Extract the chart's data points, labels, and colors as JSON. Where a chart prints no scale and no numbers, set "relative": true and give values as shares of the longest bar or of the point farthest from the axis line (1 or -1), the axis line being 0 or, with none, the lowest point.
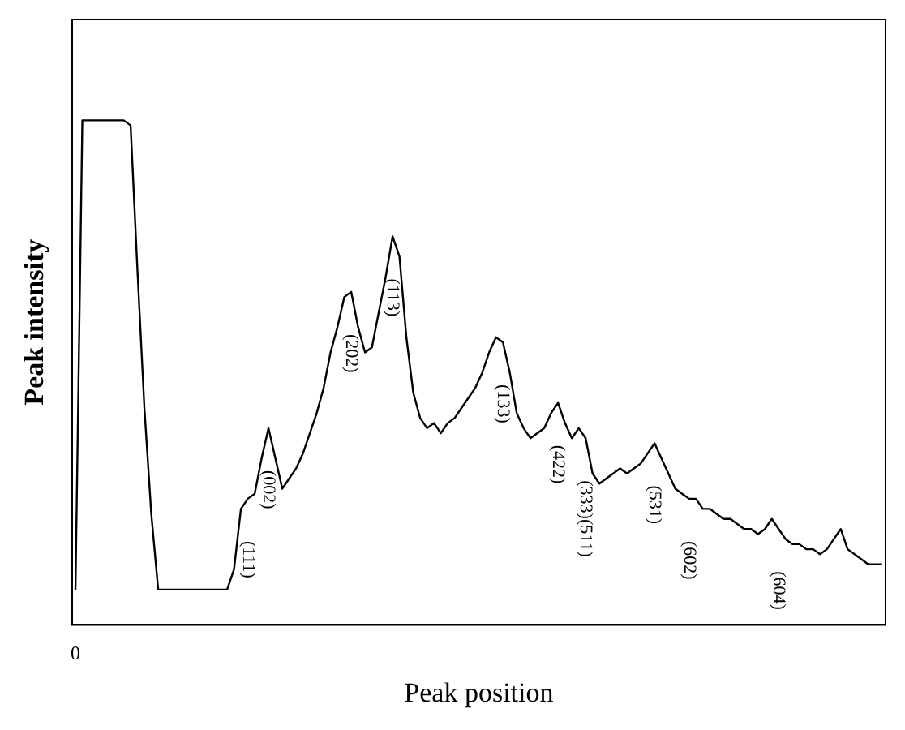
{
  "chart_data": {
    "type": "line",
    "relative": true,
    "xlabel": "Peak position",
    "ylabel": "Peak intensity",
    "legend": false,
    "grid": false,
    "categories": [
      "0",
      null,
      null,
      null,
      null,
      null,
      null,
      null,
      null,
      null,
      null,
      null,
      null,
      null,
      null,
      null,
      null,
      null,
      null,
      null,
      null,
      null,
      null,
      null,
      null,
      "(111)",
      null,
      null,
      "(002)",
      null,
      null,
      null,
      null,
      null,
      null,
      null,
      null,
      null,
      null,
      null,
      "(202)",
      null,
      null,
      null,
      null,
      null,
      "(113)",
      null,
      null,
      null,
      null,
      null,
      null,
      null,
      null,
      null,
      null,
      null,
      null,
      null,
      null,
      null,
      "(133)",
      null,
      null,
      null,
      null,
      null,
      null,
      null,
      "(422)",
      null,
      null,
      null,
      "(333)(511)",
      null,
      null,
      null,
      null,
      null,
      null,
      null,
      null,
      null,
      "(531)",
      null,
      null,
      null,
      null,
      "(602)",
      null,
      null,
      null,
      null,
      null,
      null,
      null,
      null,
      null,
      null,
      null,
      null,
      "(604)",
      null,
      null,
      null,
      null,
      null,
      null,
      null,
      null,
      null,
      null,
      null,
      null,
      null,
      null,
      null
    ],
    "series": [
      {
        "color": "#000000",
        "values": [
          0.07,
          1,
          1,
          1,
          1,
          1,
          1,
          1,
          0.99,
          0.7,
          0.43,
          0.22,
          0.07,
          0.07,
          0.07,
          0.07,
          0.07,
          0.07,
          0.07,
          0.07,
          0.07,
          0.07,
          0.07,
          0.11,
          0.23,
          0.25,
          0.26,
          0.33,
          0.39,
          0.33,
          0.27,
          0.29,
          0.31,
          0.34,
          0.38,
          0.42,
          0.47,
          0.54,
          0.59,
          0.65,
          0.66,
          0.59,
          0.54,
          0.55,
          0.62,
          0.69,
          0.77,
          0.73,
          0.57,
          0.46,
          0.41,
          0.39,
          0.4,
          0.38,
          0.4,
          0.41,
          0.43,
          0.45,
          0.47,
          0.5,
          0.54,
          0.57,
          0.56,
          0.5,
          0.42,
          0.39,
          0.37,
          0.38,
          0.39,
          0.42,
          0.44,
          0.4,
          0.37,
          0.39,
          0.37,
          0.3,
          0.28,
          0.29,
          0.3,
          0.31,
          0.3,
          0.31,
          0.32,
          0.34,
          0.36,
          0.33,
          0.3,
          0.27,
          0.26,
          0.25,
          0.25,
          0.23,
          0.23,
          0.22,
          0.21,
          0.21,
          0.2,
          0.19,
          0.19,
          0.18,
          0.19,
          0.21,
          0.19,
          0.17,
          0.16,
          0.16,
          0.15,
          0.15,
          0.14,
          0.15,
          0.17,
          0.19,
          0.15,
          0.14,
          0.13,
          0.12,
          0.12,
          0.12
        ]
      }
    ]
  }
}
